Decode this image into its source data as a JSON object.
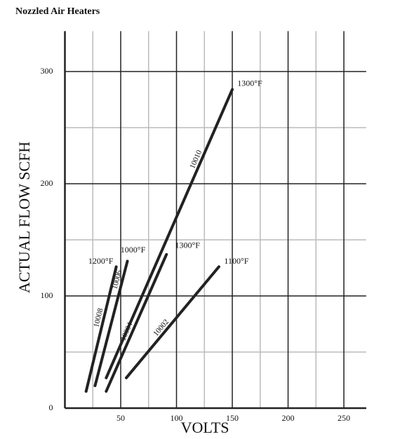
{
  "chart_data": {
    "type": "line",
    "title": "Nozzled Air Heaters",
    "x_label": "VOLTS",
    "y_label": "ACTUAL FLOW SCFH",
    "xlim": [
      0,
      270
    ],
    "ylim": [
      0,
      336
    ],
    "xticks": [
      50,
      100,
      150,
      200,
      250
    ],
    "yticks": [
      0,
      100,
      200,
      300
    ],
    "x_minor_grid": [
      25,
      75,
      125,
      175,
      225
    ],
    "y_minor_grid": [
      50,
      150,
      250
    ],
    "grid": true,
    "color": "#222222",
    "series": [
      {
        "name": "10008",
        "annotation": "1200°F",
        "x": [
          19,
          46
        ],
        "values": [
          15,
          126
        ]
      },
      {
        "name": "10006",
        "annotation": "1000°F",
        "x": [
          27,
          56
        ],
        "values": [
          20,
          131
        ]
      },
      {
        "name": "10004",
        "annotation": "1300°F",
        "x": [
          37,
          91
        ],
        "values": [
          15,
          137
        ]
      },
      {
        "name": "10010",
        "annotation": "1300°F",
        "x": [
          37,
          150
        ],
        "values": [
          27,
          284
        ]
      },
      {
        "name": "10002",
        "annotation": "1100°F",
        "x": [
          55,
          138
        ],
        "values": [
          27,
          126
        ]
      }
    ]
  }
}
